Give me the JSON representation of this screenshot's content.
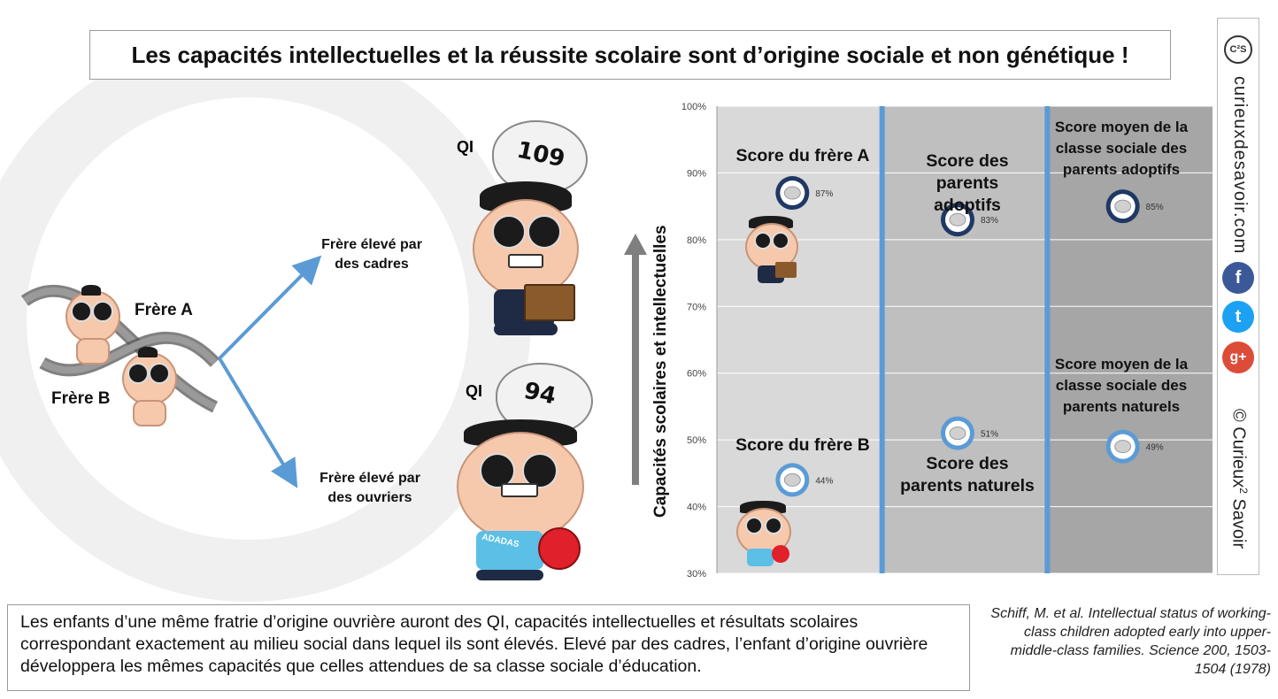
{
  "title": "Les capacités intellectuelles et la réussite scolaire sont d’origine sociale et non génétique !",
  "left": {
    "frere_a": "Frère A",
    "frere_b": "Frère B",
    "branch_top": [
      "Frère élevé par",
      "des cadres"
    ],
    "branch_bottom": [
      "Frère élevé par",
      "des ouvriers"
    ],
    "qi_label": "QI",
    "qi_top": "109",
    "qi_bottom": "94",
    "shirt_text": "ADADAS"
  },
  "colors": {
    "arrow_blue": "#5b9bd5",
    "panel1": "#d9d9d9",
    "panel2": "#bfbfbf",
    "panel3": "#a6a6a6",
    "divider": "#5b9bd5",
    "circle_dark": "#1f3864",
    "circle_light": "#5b9bd5"
  },
  "chart_data": {
    "type": "scatter",
    "ylabel": "Capacités scolaires et intellectuelles",
    "ylim": [
      30,
      100
    ],
    "yticks": [
      "30%",
      "40%",
      "50%",
      "60%",
      "70%",
      "80%",
      "90%",
      "100%"
    ],
    "ytick_values": [
      30,
      40,
      50,
      60,
      70,
      80,
      90,
      100
    ],
    "groups": [
      {
        "top_label": "Score du frère A",
        "bottom_label": "Score du frère B",
        "points": [
          {
            "name": "Score du frère A",
            "value": 87,
            "label": "87%",
            "style": "dark"
          },
          {
            "name": "Score du frère B",
            "value": 44,
            "label": "44%",
            "style": "light"
          }
        ]
      },
      {
        "top_label": "Score des parents adoptifs",
        "bottom_label": "Score des parents naturels",
        "points": [
          {
            "name": "Score des parents adoptifs",
            "value": 83,
            "label": "83%",
            "style": "dark"
          },
          {
            "name": "Score des parents naturels",
            "value": 51,
            "label": "51%",
            "style": "light"
          }
        ]
      },
      {
        "top_label": "Score moyen de la classe sociale des parents adoptifs",
        "bottom_label": "Score moyen de la classe sociale des parents naturels",
        "points": [
          {
            "name": "Score moyen de la classe sociale des parents adoptifs",
            "value": 85,
            "label": "85%",
            "style": "dark"
          },
          {
            "name": "Score moyen de la classe sociale des parents naturels",
            "value": 49,
            "label": "49%",
            "style": "light"
          }
        ]
      }
    ]
  },
  "sidebar": {
    "site": "curieuxdesavoir.com",
    "copyright_pre": "© Curieux",
    "copyright_sup": "2",
    "copyright_post": " Savoir",
    "logo_text": "C²S",
    "facebook": "f",
    "twitter": "t",
    "googleplus": "g+"
  },
  "bottom_text": "Les enfants d’une même fratrie d’origine ouvrière auront des QI, capacités intellectuelles et résultats scolaires correspondant exactement au milieu social dans lequel ils sont élevés. Elevé par des cadres, l’enfant d’origine ouvrière développera les mêmes capacités que celles attendues de sa classe sociale d’éducation.",
  "reference": "Schiff, M. et al. Intellectual status of working-class children adopted early into upper-middle-class families. Science 200, 1503-1504 (1978)"
}
